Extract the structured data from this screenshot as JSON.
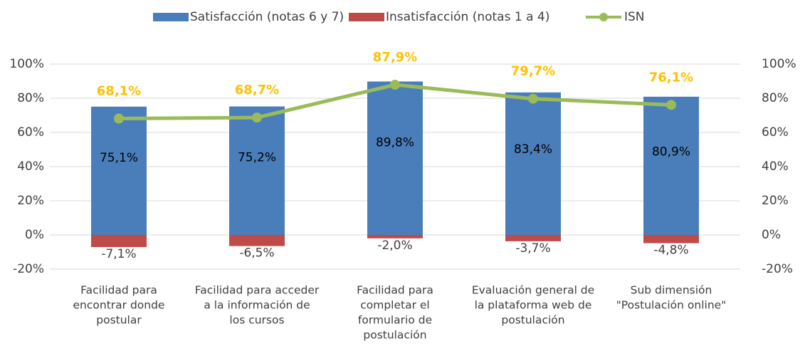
{
  "chart_data": {
    "type": "bar",
    "categories": [
      [
        "Facilidad para",
        "encontrar donde",
        "postular"
      ],
      [
        "Facilidad para acceder",
        "a la información de",
        "los cursos"
      ],
      [
        "Facilidad para",
        "completar el",
        "formulario de",
        "postulación"
      ],
      [
        "Evaluación general de",
        "la plataforma web de",
        "postulación"
      ],
      [
        "Sub dimensión",
        "\"Postulación online\""
      ]
    ],
    "series": [
      {
        "name": "Satisfacción (notas 6 y 7)",
        "type": "bar",
        "color": "#4a7ebb",
        "values": [
          75.1,
          75.2,
          89.8,
          83.4,
          80.9
        ],
        "value_labels": [
          "75,1%",
          "75,2%",
          "89,8%",
          "83,4%",
          "80,9%"
        ]
      },
      {
        "name": "Insatisfacción (notas 1 a 4)",
        "type": "bar",
        "color": "#be4b48",
        "values": [
          -7.1,
          -6.5,
          -2.0,
          -3.7,
          -4.8
        ],
        "value_labels": [
          "-7,1%",
          "-6,5%",
          "-2,0%",
          "-3,7%",
          "-4,8%"
        ]
      },
      {
        "name": "ISN",
        "type": "line",
        "color": "#9bbb59",
        "values": [
          68.1,
          68.7,
          87.9,
          79.7,
          76.1
        ],
        "value_labels": [
          "68,1%",
          "68,7%",
          "87,9%",
          "79,7%",
          "76,1%"
        ]
      }
    ],
    "ylim": [
      -20,
      100
    ],
    "yticks": [
      {
        "value": -20,
        "label": "-20%"
      },
      {
        "value": 0,
        "label": "0%"
      },
      {
        "value": 20,
        "label": "20%"
      },
      {
        "value": 40,
        "label": "40%"
      },
      {
        "value": 60,
        "label": "60%"
      },
      {
        "value": 80,
        "label": "80%"
      },
      {
        "value": 100,
        "label": "100%"
      }
    ],
    "y2lim": [
      -20,
      100
    ],
    "y2ticks": [
      {
        "value": -20,
        "label": "-20%"
      },
      {
        "value": 0,
        "label": "0%"
      },
      {
        "value": 20,
        "label": "20%"
      },
      {
        "value": 40,
        "label": "40%"
      },
      {
        "value": 60,
        "label": "60%"
      },
      {
        "value": 80,
        "label": "80%"
      },
      {
        "value": 100,
        "label": "100%"
      }
    ],
    "grid": true,
    "legend": "top"
  }
}
